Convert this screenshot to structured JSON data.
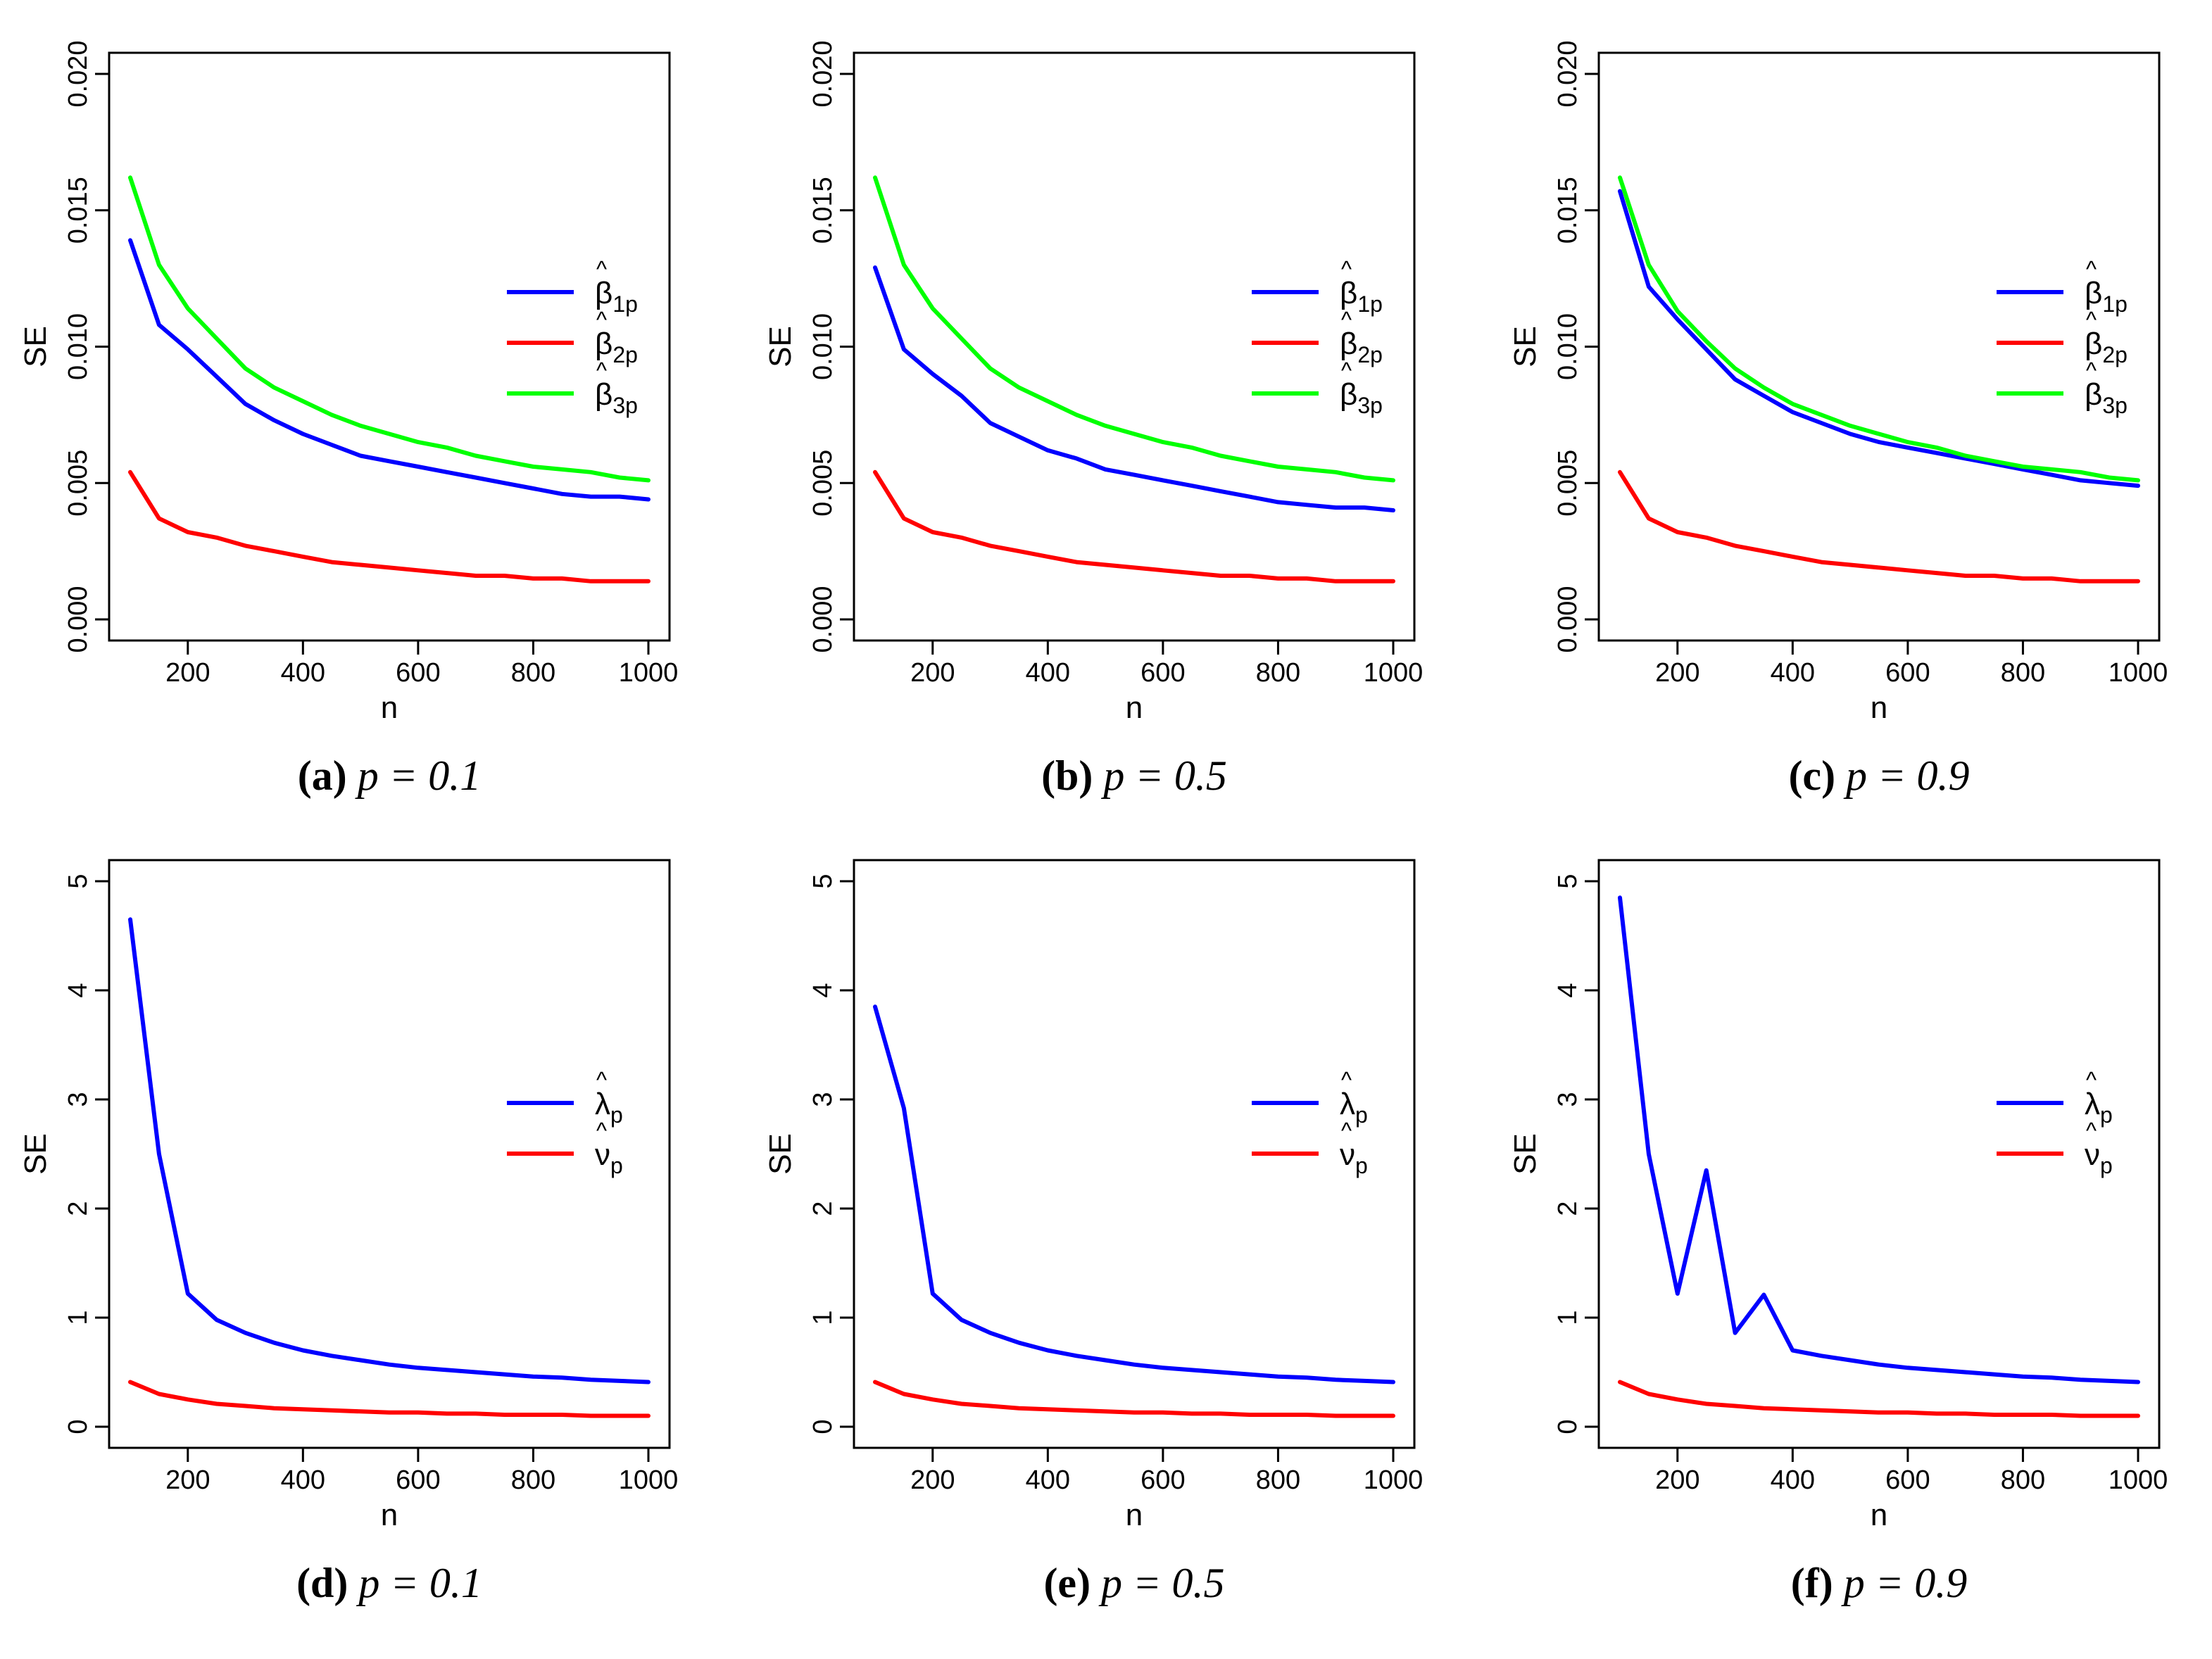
{
  "figure": {
    "panels": [
      {
        "letter": "a",
        "caption_suffix": "p = 0.1"
      },
      {
        "letter": "b",
        "caption_suffix": "p = 0.5"
      },
      {
        "letter": "c",
        "caption_suffix": "p = 0.9"
      },
      {
        "letter": "d",
        "caption_suffix": "p = 0.1"
      },
      {
        "letter": "e",
        "caption_suffix": "p = 0.5"
      },
      {
        "letter": "f",
        "caption_suffix": "p = 0.9"
      }
    ]
  },
  "colors": {
    "blue": "#0000ff",
    "red": "#ff0000",
    "green": "#00ff00"
  },
  "chart_data": [
    {
      "type": "line",
      "panel": "a",
      "p": 0.1,
      "xlabel": "n",
      "ylabel": "SE",
      "xlim": [
        100,
        1000
      ],
      "ylim": [
        0,
        0.02
      ],
      "xticks": [
        "200",
        "400",
        "600",
        "800",
        "1000"
      ],
      "yticks": [
        "0.000",
        "0.005",
        "0.010",
        "0.015",
        "0.020"
      ],
      "x": [
        100,
        150,
        200,
        250,
        300,
        350,
        400,
        450,
        500,
        550,
        600,
        650,
        700,
        750,
        800,
        850,
        900,
        950,
        1000
      ],
      "legend_position": "right",
      "series": [
        {
          "name": "β̂1p",
          "symbol": "β",
          "sub": "1p",
          "color": "#0000ff",
          "values": [
            0.0139,
            0.0108,
            0.0099,
            0.0089,
            0.0079,
            0.0073,
            0.0068,
            0.0064,
            0.006,
            0.0058,
            0.0056,
            0.0054,
            0.0052,
            0.005,
            0.0048,
            0.0046,
            0.0045,
            0.0045,
            0.0044
          ]
        },
        {
          "name": "β̂2p",
          "symbol": "β",
          "sub": "2p",
          "color": "#ff0000",
          "values": [
            0.0054,
            0.0037,
            0.0032,
            0.003,
            0.0027,
            0.0025,
            0.0023,
            0.0021,
            0.002,
            0.0019,
            0.0018,
            0.0017,
            0.0016,
            0.0016,
            0.0015,
            0.0015,
            0.0014,
            0.0014,
            0.0014
          ]
        },
        {
          "name": "β̂3p",
          "symbol": "β",
          "sub": "3p",
          "color": "#00ff00",
          "values": [
            0.0162,
            0.013,
            0.0114,
            0.0103,
            0.0092,
            0.0085,
            0.008,
            0.0075,
            0.0071,
            0.0068,
            0.0065,
            0.0063,
            0.006,
            0.0058,
            0.0056,
            0.0055,
            0.0054,
            0.0052,
            0.0051
          ]
        }
      ]
    },
    {
      "type": "line",
      "panel": "b",
      "p": 0.5,
      "xlabel": "n",
      "ylabel": "SE",
      "xlim": [
        100,
        1000
      ],
      "ylim": [
        0,
        0.02
      ],
      "xticks": [
        "200",
        "400",
        "600",
        "800",
        "1000"
      ],
      "yticks": [
        "0.000",
        "0.005",
        "0.010",
        "0.015",
        "0.020"
      ],
      "x": [
        100,
        150,
        200,
        250,
        300,
        350,
        400,
        450,
        500,
        550,
        600,
        650,
        700,
        750,
        800,
        850,
        900,
        950,
        1000
      ],
      "legend_position": "right",
      "series": [
        {
          "name": "β̂1p",
          "symbol": "β",
          "sub": "1p",
          "color": "#0000ff",
          "values": [
            0.0129,
            0.0099,
            0.009,
            0.0082,
            0.0072,
            0.0067,
            0.0062,
            0.0059,
            0.0055,
            0.0053,
            0.0051,
            0.0049,
            0.0047,
            0.0045,
            0.0043,
            0.0042,
            0.0041,
            0.0041,
            0.004
          ]
        },
        {
          "name": "β̂2p",
          "symbol": "β",
          "sub": "2p",
          "color": "#ff0000",
          "values": [
            0.0054,
            0.0037,
            0.0032,
            0.003,
            0.0027,
            0.0025,
            0.0023,
            0.0021,
            0.002,
            0.0019,
            0.0018,
            0.0017,
            0.0016,
            0.0016,
            0.0015,
            0.0015,
            0.0014,
            0.0014,
            0.0014
          ]
        },
        {
          "name": "β̂3p",
          "symbol": "β",
          "sub": "3p",
          "color": "#00ff00",
          "values": [
            0.0162,
            0.013,
            0.0114,
            0.0103,
            0.0092,
            0.0085,
            0.008,
            0.0075,
            0.0071,
            0.0068,
            0.0065,
            0.0063,
            0.006,
            0.0058,
            0.0056,
            0.0055,
            0.0054,
            0.0052,
            0.0051
          ]
        }
      ]
    },
    {
      "type": "line",
      "panel": "c",
      "p": 0.9,
      "xlabel": "n",
      "ylabel": "SE",
      "xlim": [
        100,
        1000
      ],
      "ylim": [
        0,
        0.02
      ],
      "xticks": [
        "200",
        "400",
        "600",
        "800",
        "1000"
      ],
      "yticks": [
        "0.000",
        "0.005",
        "0.010",
        "0.015",
        "0.020"
      ],
      "x": [
        100,
        150,
        200,
        250,
        300,
        350,
        400,
        450,
        500,
        550,
        600,
        650,
        700,
        750,
        800,
        850,
        900,
        950,
        1000
      ],
      "legend_position": "right",
      "series": [
        {
          "name": "β̂1p",
          "symbol": "β",
          "sub": "1p",
          "color": "#0000ff",
          "values": [
            0.0157,
            0.0122,
            0.011,
            0.0099,
            0.0088,
            0.0082,
            0.0076,
            0.0072,
            0.0068,
            0.0065,
            0.0063,
            0.0061,
            0.0059,
            0.0057,
            0.0055,
            0.0053,
            0.0051,
            0.005,
            0.0049
          ]
        },
        {
          "name": "β̂2p",
          "symbol": "β",
          "sub": "2p",
          "color": "#ff0000",
          "values": [
            0.0054,
            0.0037,
            0.0032,
            0.003,
            0.0027,
            0.0025,
            0.0023,
            0.0021,
            0.002,
            0.0019,
            0.0018,
            0.0017,
            0.0016,
            0.0016,
            0.0015,
            0.0015,
            0.0014,
            0.0014,
            0.0014
          ]
        },
        {
          "name": "β̂3p",
          "symbol": "β",
          "sub": "3p",
          "color": "#00ff00",
          "values": [
            0.0162,
            0.013,
            0.0113,
            0.0102,
            0.0092,
            0.0085,
            0.0079,
            0.0075,
            0.0071,
            0.0068,
            0.0065,
            0.0063,
            0.006,
            0.0058,
            0.0056,
            0.0055,
            0.0054,
            0.0052,
            0.0051
          ]
        }
      ]
    },
    {
      "type": "line",
      "panel": "d",
      "p": 0.1,
      "xlabel": "n",
      "ylabel": "SE",
      "xlim": [
        100,
        1000
      ],
      "ylim": [
        0,
        5
      ],
      "xticks": [
        "200",
        "400",
        "600",
        "800",
        "1000"
      ],
      "yticks": [
        "0",
        "1",
        "2",
        "3",
        "4",
        "5"
      ],
      "x": [
        100,
        150,
        200,
        250,
        300,
        350,
        400,
        450,
        500,
        550,
        600,
        650,
        700,
        750,
        800,
        850,
        900,
        950,
        1000
      ],
      "legend_position": "right",
      "series": [
        {
          "name": "λ̂p",
          "symbol": "λ",
          "sub": "p",
          "color": "#0000ff",
          "values": [
            4.65,
            2.5,
            1.22,
            0.98,
            0.86,
            0.77,
            0.7,
            0.65,
            0.61,
            0.57,
            0.54,
            0.52,
            0.5,
            0.48,
            0.46,
            0.45,
            0.43,
            0.42,
            0.41
          ]
        },
        {
          "name": "ν̂p",
          "symbol": "ν",
          "sub": "p",
          "color": "#ff0000",
          "values": [
            0.41,
            0.3,
            0.25,
            0.21,
            0.19,
            0.17,
            0.16,
            0.15,
            0.14,
            0.13,
            0.13,
            0.12,
            0.12,
            0.11,
            0.11,
            0.11,
            0.1,
            0.1,
            0.1
          ]
        }
      ]
    },
    {
      "type": "line",
      "panel": "e",
      "p": 0.5,
      "xlabel": "n",
      "ylabel": "SE",
      "xlim": [
        100,
        1000
      ],
      "ylim": [
        0,
        5
      ],
      "xticks": [
        "200",
        "400",
        "600",
        "800",
        "1000"
      ],
      "yticks": [
        "0",
        "1",
        "2",
        "3",
        "4",
        "5"
      ],
      "x": [
        100,
        150,
        200,
        250,
        300,
        350,
        400,
        450,
        500,
        550,
        600,
        650,
        700,
        750,
        800,
        850,
        900,
        950,
        1000
      ],
      "legend_position": "right",
      "series": [
        {
          "name": "λ̂p",
          "symbol": "λ",
          "sub": "p",
          "color": "#0000ff",
          "values": [
            3.85,
            2.92,
            1.22,
            0.98,
            0.86,
            0.77,
            0.7,
            0.65,
            0.61,
            0.57,
            0.54,
            0.52,
            0.5,
            0.48,
            0.46,
            0.45,
            0.43,
            0.42,
            0.41
          ]
        },
        {
          "name": "ν̂p",
          "symbol": "ν",
          "sub": "p",
          "color": "#ff0000",
          "values": [
            0.41,
            0.3,
            0.25,
            0.21,
            0.19,
            0.17,
            0.16,
            0.15,
            0.14,
            0.13,
            0.13,
            0.12,
            0.12,
            0.11,
            0.11,
            0.11,
            0.1,
            0.1,
            0.1
          ]
        }
      ]
    },
    {
      "type": "line",
      "panel": "f",
      "p": 0.9,
      "xlabel": "n",
      "ylabel": "SE",
      "xlim": [
        100,
        1000
      ],
      "ylim": [
        0,
        5
      ],
      "xticks": [
        "200",
        "400",
        "600",
        "800",
        "1000"
      ],
      "yticks": [
        "0",
        "1",
        "2",
        "3",
        "4",
        "5"
      ],
      "x": [
        100,
        150,
        200,
        250,
        300,
        350,
        400,
        450,
        500,
        550,
        600,
        650,
        700,
        750,
        800,
        850,
        900,
        950,
        1000
      ],
      "legend_position": "right",
      "series": [
        {
          "name": "λ̂p",
          "symbol": "λ",
          "sub": "p",
          "color": "#0000ff",
          "values": [
            4.85,
            2.5,
            1.22,
            2.35,
            0.86,
            1.21,
            0.7,
            0.65,
            0.61,
            0.57,
            0.54,
            0.52,
            0.5,
            0.48,
            0.46,
            0.45,
            0.43,
            0.42,
            0.41
          ]
        },
        {
          "name": "ν̂p",
          "symbol": "ν",
          "sub": "p",
          "color": "#ff0000",
          "values": [
            0.41,
            0.3,
            0.25,
            0.21,
            0.19,
            0.17,
            0.16,
            0.15,
            0.14,
            0.13,
            0.13,
            0.12,
            0.12,
            0.11,
            0.11,
            0.11,
            0.1,
            0.1,
            0.1
          ]
        }
      ]
    }
  ]
}
